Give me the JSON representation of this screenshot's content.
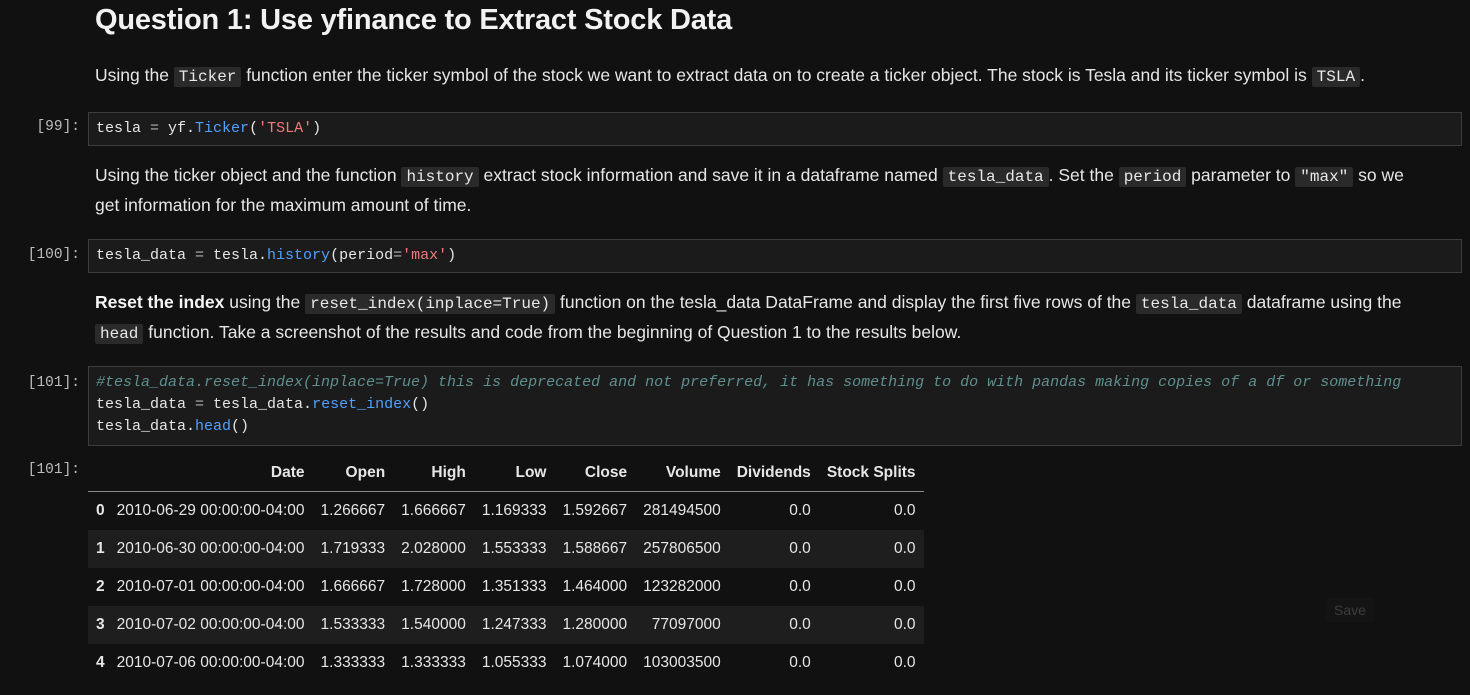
{
  "heading": "Question 1: Use yfinance to Extract Stock Data",
  "md1": {
    "t1": "Using the ",
    "c1": "Ticker",
    "t2": " function enter the ticker symbol of the stock we want to extract data on to create a ticker object. The stock is Tesla and its ticker symbol is ",
    "c2": "TSLA",
    "t3": "."
  },
  "cell99": {
    "prompt": "[99]:",
    "tokens": [
      "tesla",
      " = ",
      "yf.",
      "Ticker",
      "(",
      "'TSLA'",
      ")"
    ]
  },
  "md2": {
    "t1": "Using the ticker object and the function ",
    "c1": "history",
    "t2": " extract stock information and save it in a dataframe named ",
    "c2": "tesla_data",
    "t3": ". Set the ",
    "c3": "period",
    "t4": " parameter to ",
    "c4": "\"max\"",
    "t5": " so we",
    "line2": "get information for the maximum amount of time."
  },
  "cell100": {
    "prompt": "[100]:",
    "tokens": [
      "tesla_data",
      " = ",
      "tesla.",
      "history",
      "(period",
      "=",
      "'max'",
      ")"
    ]
  },
  "md3": {
    "bold": "Reset the index",
    "t1": " using the ",
    "c1": "reset_index(inplace=True)",
    "t2": " function on the tesla_data DataFrame and display the first five rows of the ",
    "c2": "tesla_data",
    "t3": " dataframe using the",
    "c3": "head",
    "t4": " function. Take a screenshot of the results and code from the beginning of Question 1 to the results below."
  },
  "cell101": {
    "prompt": "[101]:",
    "comment": "#tesla_data.reset_index(inplace=True) this is deprecated and not preferred, it has something to do with pandas making copies of a df or something",
    "line2": [
      "tesla_data",
      " = ",
      "tesla_data.",
      "reset_index",
      "()"
    ],
    "line3": [
      "tesla_data.",
      "head",
      "()"
    ]
  },
  "output101": {
    "prompt": "[101]:",
    "columns": [
      "",
      "Date",
      "Open",
      "High",
      "Low",
      "Close",
      "Volume",
      "Dividends",
      "Stock Splits"
    ],
    "rows": [
      [
        "0",
        "2010-06-29 00:00:00-04:00",
        "1.266667",
        "1.666667",
        "1.169333",
        "1.592667",
        "281494500",
        "0.0",
        "0.0"
      ],
      [
        "1",
        "2010-06-30 00:00:00-04:00",
        "1.719333",
        "2.028000",
        "1.553333",
        "1.588667",
        "257806500",
        "0.0",
        "0.0"
      ],
      [
        "2",
        "2010-07-01 00:00:00-04:00",
        "1.666667",
        "1.728000",
        "1.351333",
        "1.464000",
        "123282000",
        "0.0",
        "0.0"
      ],
      [
        "3",
        "2010-07-02 00:00:00-04:00",
        "1.533333",
        "1.540000",
        "1.247333",
        "1.280000",
        "77097000",
        "0.0",
        "0.0"
      ],
      [
        "4",
        "2010-07-06 00:00:00-04:00",
        "1.333333",
        "1.333333",
        "1.055333",
        "1.074000",
        "103003500",
        "0.0",
        "0.0"
      ]
    ]
  },
  "save_label": "Save",
  "colors": {
    "background": "#111111",
    "code_background": "#1b1b1b",
    "function": "#4ea1ff",
    "string": "#f07a7a",
    "comment": "#5f8f8f"
  }
}
